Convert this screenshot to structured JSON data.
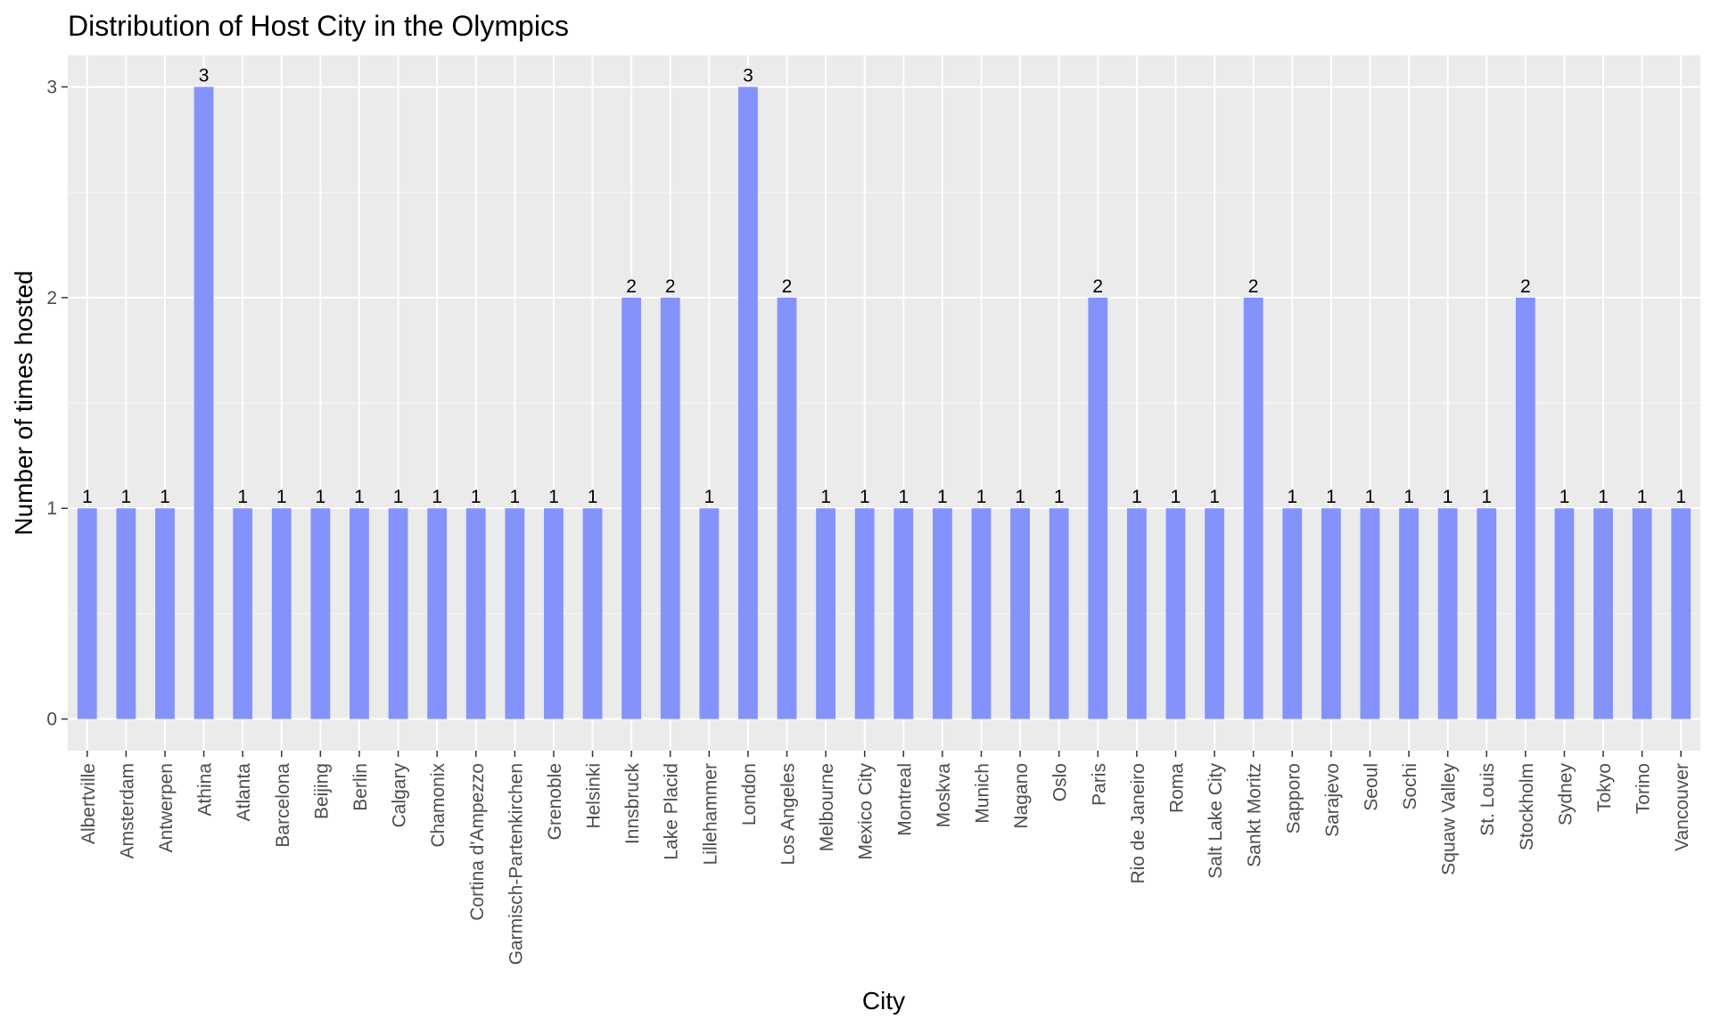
{
  "chart_data": {
    "type": "bar",
    "title": "Distribution of Host City in the Olympics",
    "xlabel": "City",
    "ylabel": "Number of times hosted",
    "ylim": [
      -0.15,
      3.15
    ],
    "yticks": [
      0,
      1,
      2,
      3
    ],
    "grid": true,
    "bar_color": "#8592FC",
    "panel_color": "#EBEBEB",
    "categories": [
      "Albertville",
      "Amsterdam",
      "Antwerpen",
      "Athina",
      "Atlanta",
      "Barcelona",
      "Beijing",
      "Berlin",
      "Calgary",
      "Chamonix",
      "Cortina d'Ampezzo",
      "Garmisch-Partenkirchen",
      "Grenoble",
      "Helsinki",
      "Innsbruck",
      "Lake Placid",
      "Lillehammer",
      "London",
      "Los Angeles",
      "Melbourne",
      "Mexico City",
      "Montreal",
      "Moskva",
      "Munich",
      "Nagano",
      "Oslo",
      "Paris",
      "Rio de Janeiro",
      "Roma",
      "Salt Lake City",
      "Sankt Moritz",
      "Sapporo",
      "Sarajevo",
      "Seoul",
      "Sochi",
      "Squaw Valley",
      "St. Louis",
      "Stockholm",
      "Sydney",
      "Tokyo",
      "Torino",
      "Vancouver"
    ],
    "values": [
      1,
      1,
      1,
      3,
      1,
      1,
      1,
      1,
      1,
      1,
      1,
      1,
      1,
      1,
      2,
      2,
      1,
      3,
      2,
      1,
      1,
      1,
      1,
      1,
      1,
      1,
      2,
      1,
      1,
      1,
      2,
      1,
      1,
      1,
      1,
      1,
      1,
      2,
      1,
      1,
      1,
      1
    ],
    "data_labels": [
      "1",
      "1",
      "1",
      "3",
      "1",
      "1",
      "1",
      "1",
      "1",
      "1",
      "1",
      "1",
      "1",
      "1",
      "2",
      "2",
      "1",
      "3",
      "2",
      "1",
      "1",
      "1",
      "1",
      "1",
      "1",
      "1",
      "2",
      "1",
      "1",
      "1",
      "2",
      "1",
      "1",
      "1",
      "1",
      "1",
      "1",
      "2",
      "1",
      "1",
      "1",
      "1"
    ]
  }
}
